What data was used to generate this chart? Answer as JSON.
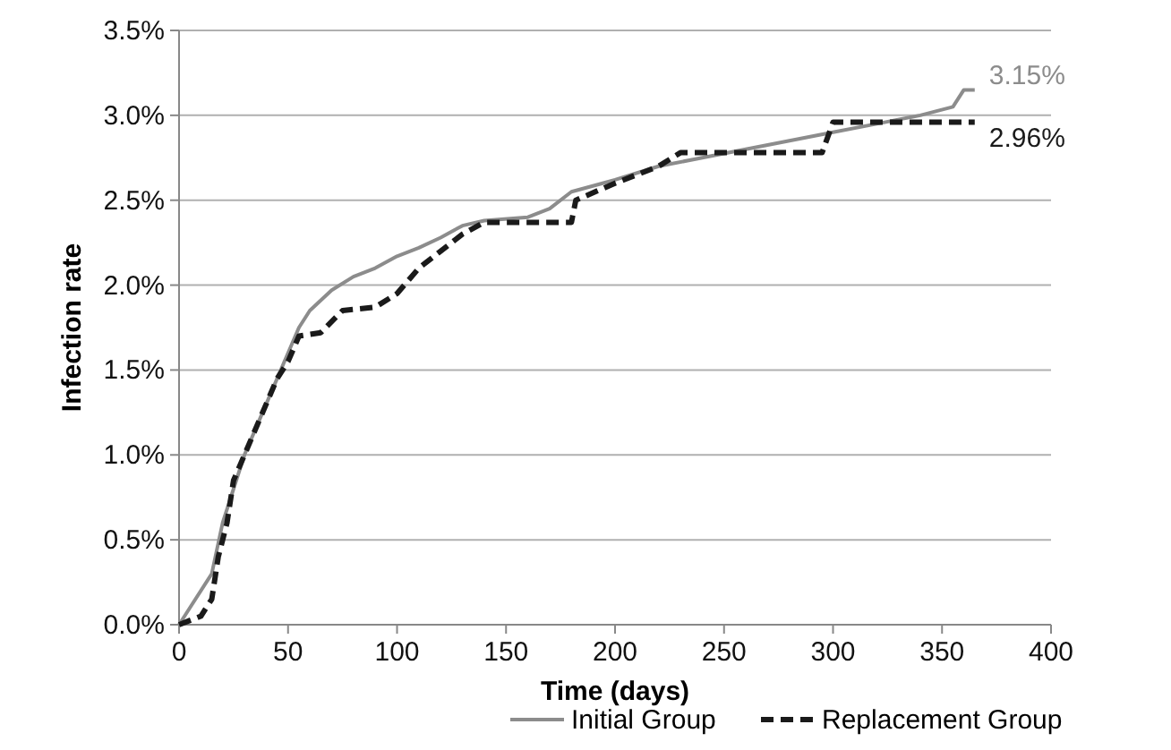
{
  "chart_data": {
    "type": "line",
    "xlabel": "Time (days)",
    "ylabel": "Infection rate",
    "xlim": [
      0,
      400
    ],
    "xticks": [
      0,
      50,
      100,
      150,
      200,
      250,
      300,
      350,
      400
    ],
    "ylim": [
      0,
      3.5
    ],
    "yticks": [
      {
        "value": 0,
        "label": "0.0%"
      },
      {
        "value": 0.5,
        "label": "0.5%"
      },
      {
        "value": 1,
        "label": "1.0%"
      },
      {
        "value": 1.5,
        "label": "1.5%"
      },
      {
        "value": 2,
        "label": "2.0%"
      },
      {
        "value": 2.5,
        "label": "2.5%"
      },
      {
        "value": 3,
        "label": "3.0%"
      },
      {
        "value": 3.5,
        "label": "3.5%"
      }
    ],
    "grid": "y",
    "legend": "bottom",
    "marker": "none",
    "series": [
      {
        "name": "Initial Group",
        "color": "#8c8c8c",
        "line_style": "solid",
        "x": [
          0,
          5,
          15,
          20,
          30,
          40,
          50,
          55,
          60,
          70,
          80,
          90,
          100,
          110,
          120,
          130,
          140,
          160,
          170,
          180,
          200,
          220,
          240,
          260,
          280,
          300,
          320,
          340,
          355,
          360,
          365
        ],
        "values": [
          0,
          0.1,
          0.3,
          0.6,
          1.0,
          1.3,
          1.6,
          1.75,
          1.85,
          1.97,
          2.05,
          2.1,
          2.17,
          2.22,
          2.28,
          2.35,
          2.38,
          2.4,
          2.45,
          2.55,
          2.62,
          2.7,
          2.75,
          2.8,
          2.85,
          2.9,
          2.95,
          3.0,
          3.05,
          3.15,
          3.15
        ]
      },
      {
        "name": "Replacement Group",
        "color": "#1a1a1a",
        "line_style": "dashed",
        "x": [
          0,
          10,
          15,
          18,
          22,
          25,
          30,
          40,
          45,
          50,
          55,
          65,
          75,
          90,
          100,
          110,
          120,
          130,
          140,
          180,
          182,
          200,
          220,
          230,
          295,
          300,
          365
        ],
        "values": [
          0,
          0.05,
          0.15,
          0.4,
          0.6,
          0.85,
          1.0,
          1.3,
          1.45,
          1.55,
          1.7,
          1.72,
          1.85,
          1.87,
          1.95,
          2.1,
          2.2,
          2.3,
          2.37,
          2.37,
          2.5,
          2.6,
          2.7,
          2.78,
          2.78,
          2.96,
          2.96
        ]
      }
    ],
    "annotations": [
      {
        "text": "3.15%",
        "x": 365,
        "y": 3.15
      },
      {
        "text": "2.96%",
        "x": 365,
        "y": 2.96
      }
    ]
  }
}
